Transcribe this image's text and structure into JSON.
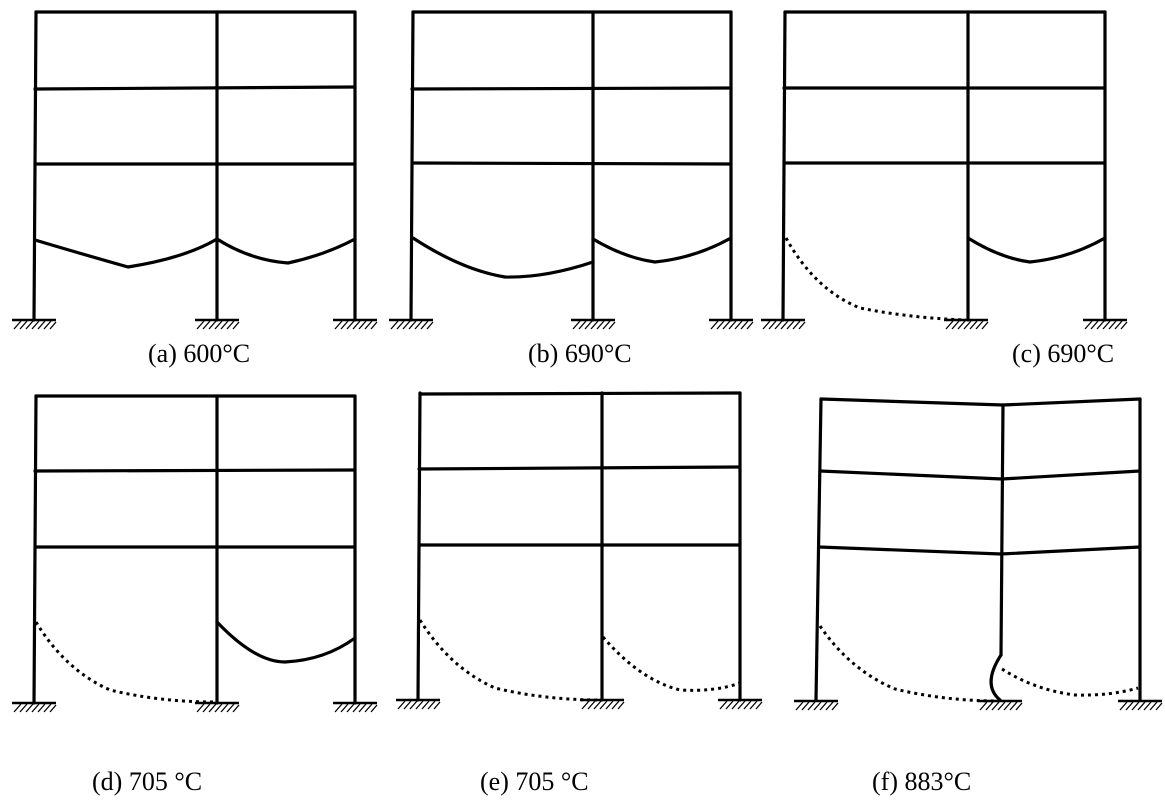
{
  "figure": {
    "panels": [
      {
        "id": "a",
        "caption": "(a)  600°C"
      },
      {
        "id": "b",
        "caption": "(b)   690°C"
      },
      {
        "id": "c",
        "caption": "(c) 690°C"
      },
      {
        "id": "d",
        "caption": "(d) 705 °C"
      },
      {
        "id": "e",
        "caption": "(e) 705 °C"
      },
      {
        "id": "f",
        "caption": "(f) 883°C"
      }
    ]
  }
}
